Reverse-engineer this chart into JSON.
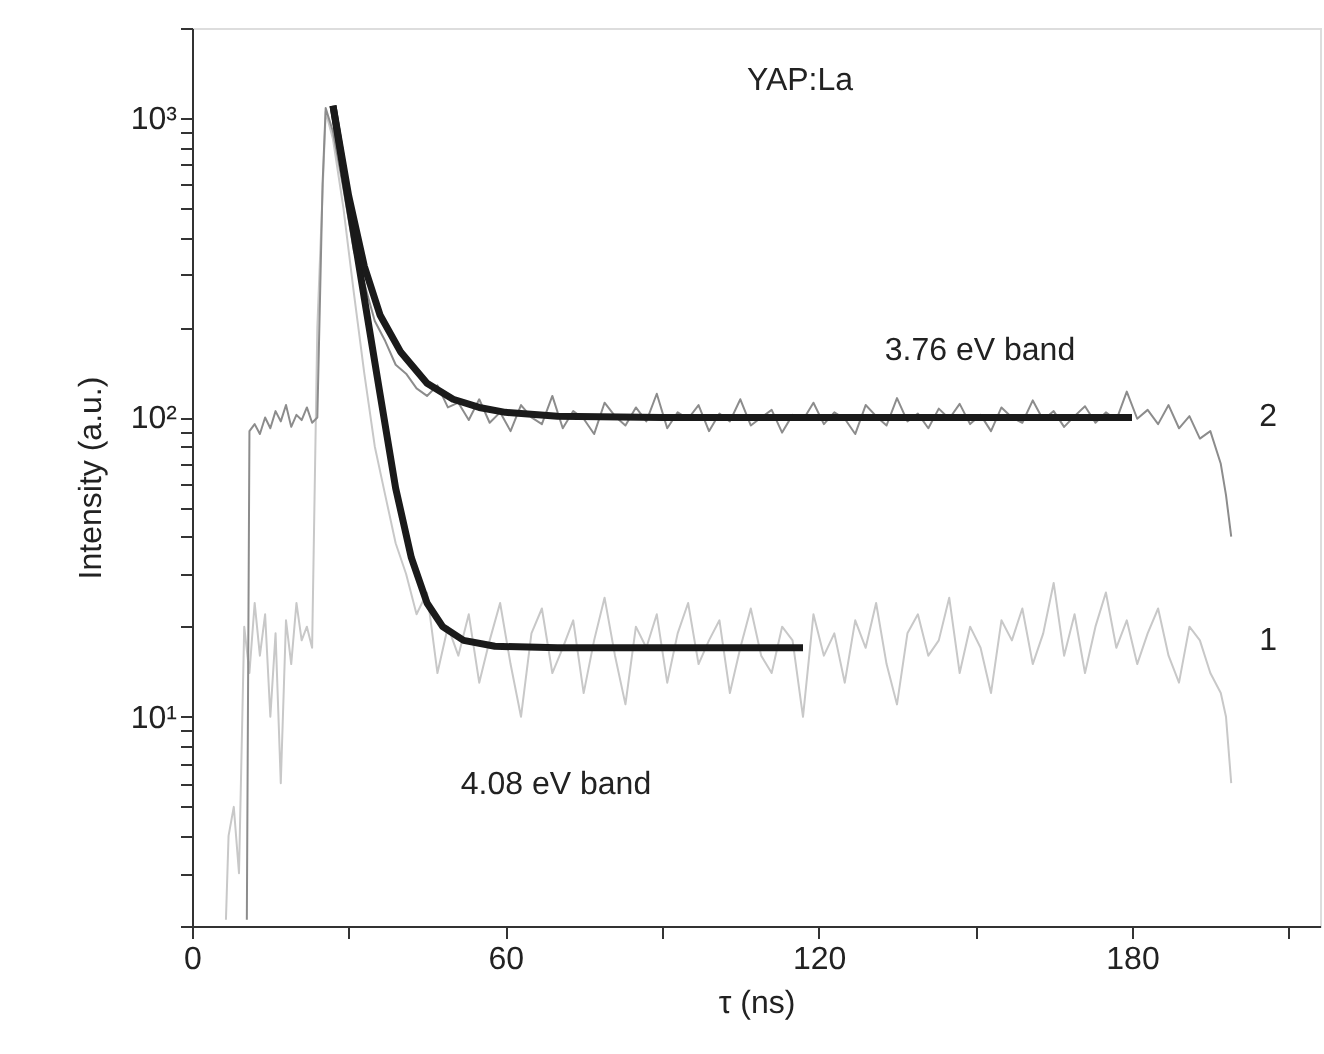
{
  "chart_data": {
    "type": "line",
    "xlabel": "τ (ns)",
    "ylabel": "Intensity (a.u.)",
    "log": "y",
    "grid": false,
    "legend": false,
    "xlim": [
      0,
      216
    ],
    "ylim": [
      2,
      2000
    ],
    "xticks": [
      0,
      {
        "value": 30,
        "label": null
      },
      60,
      {
        "value": 90,
        "label": null
      },
      120,
      {
        "value": 150,
        "label": null
      },
      180,
      {
        "value": 210,
        "label": null
      }
    ],
    "yticks": [
      {
        "value": 2,
        "label": null
      },
      {
        "value": 3,
        "label": null
      },
      {
        "value": 4,
        "label": null
      },
      {
        "value": 5,
        "label": null
      },
      {
        "value": 6,
        "label": null
      },
      {
        "value": 7,
        "label": null
      },
      {
        "value": 8,
        "label": null
      },
      {
        "value": 9,
        "label": null
      },
      {
        "value": 10,
        "label": "10¹"
      },
      {
        "value": 20,
        "label": null
      },
      {
        "value": 30,
        "label": null
      },
      {
        "value": 40,
        "label": null
      },
      {
        "value": 50,
        "label": null
      },
      {
        "value": 60,
        "label": null
      },
      {
        "value": 70,
        "label": null
      },
      {
        "value": 80,
        "label": null
      },
      {
        "value": 90,
        "label": null
      },
      {
        "value": 100,
        "label": "10²"
      },
      {
        "value": 200,
        "label": null
      },
      {
        "value": 300,
        "label": null
      },
      {
        "value": 400,
        "label": null
      },
      {
        "value": 500,
        "label": null
      },
      {
        "value": 600,
        "label": null
      },
      {
        "value": 700,
        "label": null
      },
      {
        "value": 800,
        "label": null
      },
      {
        "value": 900,
        "label": null
      },
      {
        "value": 1000,
        "label": "10³"
      },
      {
        "value": 2000,
        "label": null
      }
    ],
    "annotations": [
      "YAP:La",
      "3.76 eV band",
      "4.08 eV band"
    ],
    "series": [
      {
        "name": "1",
        "color": "#c8c8c8",
        "x": [
          6.5,
          7,
          8,
          9,
          10,
          11,
          12,
          13,
          14,
          15,
          16,
          17,
          18,
          19,
          20,
          21,
          22,
          23,
          24,
          25.6,
          27,
          29,
          31,
          33,
          35,
          37,
          39,
          41,
          43,
          45,
          47,
          49,
          51,
          53,
          55,
          57,
          59,
          61,
          63,
          65,
          67,
          69,
          71,
          73,
          75,
          77,
          79,
          81,
          83,
          85,
          87,
          89,
          91,
          93,
          95,
          97,
          99,
          101,
          103,
          105,
          107,
          109,
          111,
          113,
          115,
          117,
          119,
          121,
          123,
          125,
          127,
          129,
          131,
          133,
          135,
          137,
          139,
          141,
          143,
          145,
          147,
          149,
          151,
          153,
          155,
          157,
          159,
          161,
          163,
          165,
          167,
          169,
          171,
          173,
          175,
          177,
          179,
          181,
          183,
          185,
          187,
          189,
          191,
          193,
          195,
          197,
          198,
          199
        ],
        "values": [
          2.1,
          4,
          5,
          3,
          20,
          14,
          24,
          16,
          22,
          10,
          19,
          6,
          21,
          15,
          24,
          18,
          20,
          17,
          200,
          1050,
          850,
          500,
          260,
          140,
          80,
          55,
          38,
          30,
          22,
          26,
          14,
          20,
          16,
          22,
          13,
          18,
          24,
          15,
          10,
          19,
          23,
          14,
          17,
          21,
          12,
          18,
          25,
          16,
          11,
          20,
          17,
          22,
          13,
          19,
          24,
          15,
          18,
          21,
          12,
          17,
          23,
          16,
          14,
          20,
          18,
          10,
          22,
          16,
          19,
          13,
          21,
          17,
          24,
          15,
          11,
          19,
          22,
          16,
          18,
          25,
          14,
          20,
          17,
          12,
          21,
          18,
          23,
          15,
          19,
          28,
          16,
          22,
          14,
          20,
          26,
          17,
          21,
          15,
          19,
          23,
          16,
          13,
          20,
          18,
          14,
          12,
          10,
          6
        ]
      },
      {
        "name": "2",
        "color": "#8c8c8c",
        "x": [
          10.5,
          11,
          12,
          13,
          14,
          15,
          16,
          17,
          18,
          19,
          20,
          21,
          22,
          23,
          24,
          25,
          25.6,
          27,
          29,
          31,
          33,
          35,
          37,
          39,
          41,
          43,
          45,
          47,
          49,
          51,
          53,
          55,
          57,
          59,
          61,
          63,
          65,
          67,
          69,
          71,
          73,
          75,
          77,
          79,
          81,
          83,
          85,
          87,
          89,
          91,
          93,
          95,
          97,
          99,
          101,
          103,
          105,
          107,
          109,
          111,
          113,
          115,
          117,
          119,
          121,
          123,
          125,
          127,
          129,
          131,
          133,
          135,
          137,
          139,
          141,
          143,
          145,
          147,
          149,
          151,
          153,
          155,
          157,
          159,
          161,
          163,
          165,
          167,
          169,
          171,
          173,
          175,
          177,
          179,
          181,
          183,
          185,
          187,
          189,
          191,
          193,
          195,
          197,
          198,
          199
        ],
        "values": [
          2.1,
          90,
          95,
          88,
          100,
          92,
          105,
          97,
          110,
          93,
          102,
          98,
          108,
          96,
          100,
          600,
          1080,
          900,
          580,
          360,
          280,
          210,
          180,
          150,
          140,
          125,
          118,
          128,
          108,
          112,
          98,
          115,
          96,
          104,
          90,
          110,
          100,
          95,
          118,
          92,
          105,
          99,
          88,
          112,
          101,
          94,
          108,
          97,
          120,
          92,
          104,
          99,
          110,
          90,
          103,
          97,
          115,
          94,
          100,
          106,
          89,
          102,
          98,
          112,
          95,
          104,
          99,
          88,
          110,
          101,
          94,
          116,
          97,
          103,
          92,
          107,
          99,
          111,
          95,
          102,
          90,
          108,
          100,
          96,
          114,
          98,
          105,
          93,
          101,
          109,
          96,
          104,
          98,
          122,
          99,
          106,
          95,
          110,
          92,
          101,
          85,
          90,
          70,
          55,
          40
        ]
      },
      {
        "color": "#1a1a1a",
        "x": [
          27,
          30,
          33,
          36,
          39,
          42,
          45,
          48,
          52,
          58,
          70,
          90,
          117
        ],
        "values": [
          1100,
          520,
          250,
          120,
          58,
          34,
          24,
          20,
          18,
          17.2,
          17,
          17,
          17
        ]
      },
      {
        "color": "#1a1a1a",
        "x": [
          27,
          30,
          33,
          36,
          40,
          45,
          50,
          55,
          60,
          70,
          90,
          120,
          180
        ],
        "values": [
          1100,
          550,
          320,
          220,
          165,
          130,
          115,
          108,
          104,
          101,
          100,
          100,
          100
        ]
      }
    ]
  }
}
